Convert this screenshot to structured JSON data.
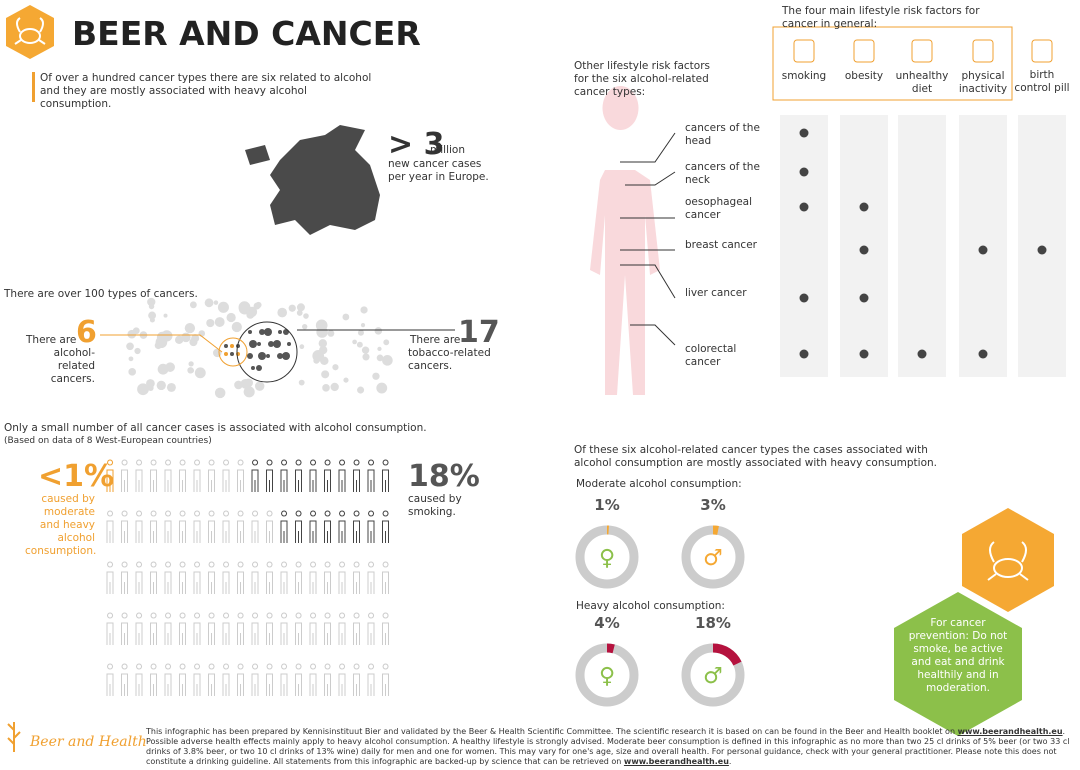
{
  "header": {
    "title": "BEER AND CANCER",
    "intro": "Of over a hundred cancer types there are six related to alcohol and they are mostly associated with heavy alcohol consumption."
  },
  "europe": {
    "prefix": ">",
    "number": "3",
    "unit": "million",
    "text": "new cancer cases per year in Europe."
  },
  "types": {
    "heading": "There are over 100 types of cancers.",
    "alcohol": {
      "prefix": "There are",
      "number": "6",
      "text": "alcohol-related cancers."
    },
    "tobacco": {
      "prefix": "There are",
      "number": "17",
      "text": "tobacco-related cancers."
    }
  },
  "share": {
    "heading": "Only a small number of all cancer cases is associated with alcohol consumption.",
    "note": "(Based on data of 8 West-European countries)",
    "alcohol": {
      "value": "<1%",
      "text": "caused by moderate and heavy alcohol consumption."
    },
    "smoking": {
      "value": "18%",
      "text": "caused by smoking."
    }
  },
  "risk": {
    "general_title": "The four main lifestyle risk factors for cancer in general:",
    "other_title": "Other lifestyle risk factors for the six alcohol-related cancer types:",
    "factors": [
      "smoking",
      "obesity",
      "unhealthy diet",
      "physical inactivity",
      "birth control pill"
    ],
    "cancers": [
      "cancers of the head",
      "cancers of the neck",
      "oesophageal cancer",
      "breast cancer",
      "liver cancer",
      "colorectal cancer"
    ],
    "matrix": [
      [
        1,
        0,
        0,
        0,
        0
      ],
      [
        1,
        0,
        0,
        0,
        0
      ],
      [
        1,
        1,
        0,
        0,
        0
      ],
      [
        0,
        1,
        0,
        1,
        1
      ],
      [
        1,
        1,
        0,
        0,
        0
      ],
      [
        1,
        1,
        1,
        1,
        0
      ]
    ]
  },
  "consumption": {
    "heading": "Of these six alcohol-related cancer types the cases associated with alcohol consumption are mostly associated with heavy consumption.",
    "moderate": {
      "title": "Moderate alcohol consumption:",
      "female": {
        "value": 1,
        "label": "1%"
      },
      "male": {
        "value": 3,
        "label": "3%"
      }
    },
    "heavy": {
      "title": "Heavy alcohol consumption:",
      "female": {
        "value": 4,
        "label": "4%"
      },
      "male": {
        "value": 18,
        "label": "18%"
      }
    }
  },
  "advice": "For cancer prevention: Do not smoke, be active and eat and drink healthily and in moderation.",
  "footer": {
    "logo": "Beer and Health",
    "text1": "This infographic has been prepared by Kennisinstituut Bier and validated by the Beer & Health Scientific Committee. The scientific research it is based on can be found in the Beer and Health booklet on ",
    "link1": "www.beerandhealth.eu",
    "text2": ". Possible adverse health effects mainly apply to heavy alcohol consumption. A healthy lifestyle is strongly advised. Moderate beer consumption is defined in this infographic as no more than two 25 cl drinks of 5% beer (or two 33 cl drinks of 3.8% beer, or two 10 cl drinks of 13% wine) daily for men and one for women. This may vary for one's age, size and overall health. For personal guidance, check with your general practitioner. Please note this does not constitute a drinking guideline. All statements from this infographic are backed-up by science that can be retrieved on ",
    "link2": "www.beerandhealth.eu",
    "text3": "."
  }
}
